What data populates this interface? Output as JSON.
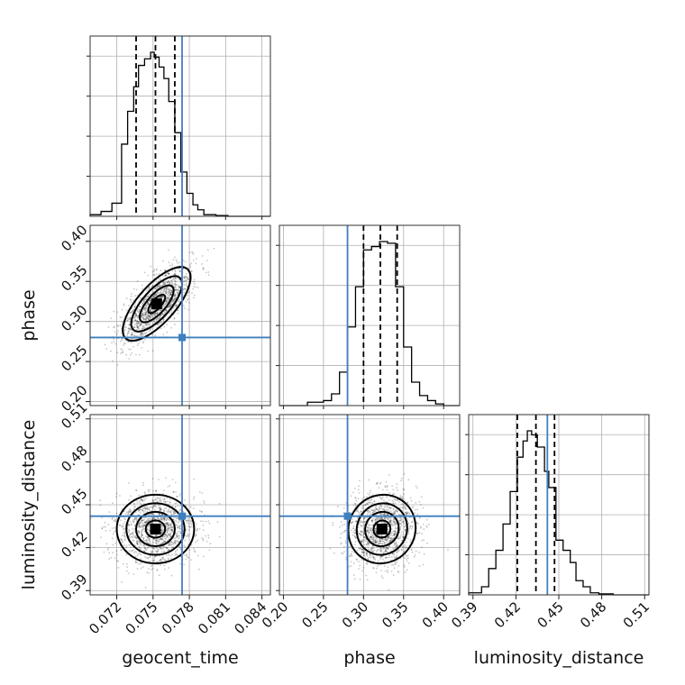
{
  "chart_data": {
    "type": "corner",
    "parameters": [
      {
        "name": "geocent_time",
        "xlabel": "geocent_time",
        "ylabel": "",
        "range": [
          0.0698,
          0.0847
        ],
        "ticks": [
          "0.072",
          "0.075",
          "0.078",
          "0.081",
          "0.084"
        ],
        "quantiles": [
          0.0736,
          0.0752,
          0.0768
        ],
        "truth": 0.0774,
        "histogram": {
          "bin_edges": [
            0.0698,
            0.0707,
            0.0716,
            0.0724,
            0.0729,
            0.0734,
            0.0738,
            0.0743,
            0.0748,
            0.0751,
            0.0755,
            0.0759,
            0.0763,
            0.0768,
            0.0773,
            0.0778,
            0.0783,
            0.0787,
            0.0792,
            0.0802,
            0.0812,
            0.0847
          ],
          "heights": [
            0.01,
            0.03,
            0.08,
            0.44,
            0.64,
            0.79,
            0.92,
            0.96,
            1.0,
            0.97,
            0.91,
            0.84,
            0.7,
            0.51,
            0.27,
            0.14,
            0.07,
            0.04,
            0.01,
            0.005,
            0.0
          ]
        }
      },
      {
        "name": "phase",
        "xlabel": "phase",
        "ylabel": "phase",
        "range": [
          0.195,
          0.42
        ],
        "ticks": [
          "0.20",
          "0.25",
          "0.30",
          "0.35",
          "0.40"
        ],
        "quantiles": [
          0.3,
          0.321,
          0.342
        ],
        "truth": 0.28,
        "histogram": {
          "bin_edges": [
            0.195,
            0.23,
            0.25,
            0.26,
            0.27,
            0.28,
            0.29,
            0.3,
            0.31,
            0.32,
            0.33,
            0.34,
            0.35,
            0.36,
            0.37,
            0.38,
            0.39,
            0.4,
            0.42
          ],
          "heights": [
            0.0,
            0.02,
            0.03,
            0.07,
            0.2,
            0.47,
            0.71,
            0.93,
            0.95,
            0.98,
            0.97,
            0.71,
            0.35,
            0.14,
            0.06,
            0.03,
            0.01,
            0.0
          ]
        }
      },
      {
        "name": "luminosity_distance",
        "xlabel": "luminosity_distance",
        "ylabel": "luminosity_distance",
        "range": [
          0.387,
          0.513
        ],
        "ticks": [
          "0.39",
          "0.42",
          "0.45",
          "0.48",
          "0.51"
        ],
        "quantiles": [
          0.421,
          0.434,
          0.447
        ],
        "truth": 0.442,
        "histogram": {
          "bin_edges": [
            0.387,
            0.396,
            0.401,
            0.406,
            0.411,
            0.416,
            0.421,
            0.425,
            0.428,
            0.431,
            0.435,
            0.44,
            0.443,
            0.448,
            0.453,
            0.458,
            0.462,
            0.467,
            0.472,
            0.478,
            0.488,
            0.513
          ],
          "heights": [
            0.01,
            0.04,
            0.13,
            0.22,
            0.35,
            0.51,
            0.68,
            0.76,
            0.81,
            0.79,
            0.73,
            0.61,
            0.53,
            0.27,
            0.22,
            0.16,
            0.07,
            0.04,
            0.01,
            0.005,
            0.0
          ]
        }
      }
    ],
    "joint": [
      {
        "x": "geocent_time",
        "y": "phase",
        "mean": [
          0.0753,
          0.322
        ],
        "sd": [
          0.0014,
          0.023
        ],
        "corr": 0.72,
        "truth": [
          0.0774,
          0.28
        ]
      },
      {
        "x": "geocent_time",
        "y": "luminosity_distance",
        "mean": [
          0.0752,
          0.433
        ],
        "sd": [
          0.0016,
          0.012
        ],
        "corr": 0.0,
        "truth": [
          0.0774,
          0.442
        ]
      },
      {
        "x": "phase",
        "y": "luminosity_distance",
        "mean": [
          0.323,
          0.433
        ],
        "sd": [
          0.021,
          0.012
        ],
        "corr": 0.05,
        "truth": [
          0.28,
          0.442
        ]
      }
    ],
    "contour_levels_sigma": [
      0.5,
      1.0,
      1.5,
      2.0
    ],
    "grid": true,
    "colors": {
      "truth": "#3f7fbf",
      "histogram": "#000000",
      "quantile_lines": "#000000",
      "samples": "#000000",
      "grid": "#b0b0b0"
    }
  }
}
